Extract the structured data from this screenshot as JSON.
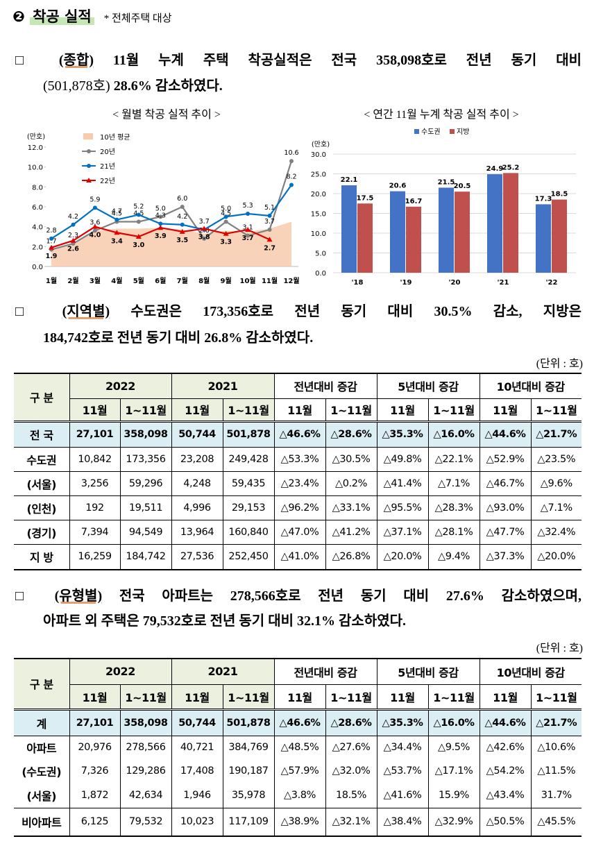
{
  "section": {
    "number": "❷",
    "title": "착공 실적",
    "note": "* 전체주택 대상"
  },
  "paragraphs": [
    {
      "runs": [
        "□",
        "(종합)",
        "11월 누계 주택 착공실적은 전국 358,098호로 전년 동기 대비",
        "(501,878호)",
        "28.6% 감소하였다."
      ]
    },
    {
      "runs": [
        "□",
        "(지역별)",
        "수도권은 173,356호로 전년 동기 대비 30.5% 감소, 지방은",
        "184,742호로 전년 동기 대비 26.8% 감소하였다."
      ]
    },
    {
      "runs": [
        "□",
        "(유형별)",
        "전국 아파트는 278,566호로 전년 동기 대비 27.6% 감소하였으며,",
        "아파트 외 주택은 79,532호로 전년 동기 대비 32.1% 감소하였다."
      ]
    }
  ],
  "chart_data": [
    {
      "type": "line",
      "title": "< 월별 착공 실적 추이 >",
      "y_label": "(만호)",
      "categories": [
        "1월",
        "2월",
        "3월",
        "4월",
        "5월",
        "6월",
        "7월",
        "8월",
        "9월",
        "10월",
        "11월",
        "12월"
      ],
      "ylim": [
        0,
        12
      ],
      "yticks": [
        {
          "value": 0,
          "label": "0.0"
        },
        {
          "value": 2,
          "label": "2.0"
        },
        {
          "value": 4,
          "label": "4.0"
        },
        {
          "value": 6,
          "label": "6.0"
        },
        {
          "value": 8,
          "label": "8.0"
        },
        {
          "value": 10,
          "label": "10.0"
        },
        {
          "value": 12,
          "label": "12.0"
        }
      ],
      "grid": false,
      "series": [
        {
          "name": "10년 평균",
          "style": "area",
          "color": "#f8cbad",
          "values": [
            1.6,
            2.3,
            3.6,
            3.8,
            3.8,
            3.9,
            3.7,
            3.3,
            3.6,
            3.5,
            3.8,
            4.5
          ]
        },
        {
          "name": "20년",
          "style": "line",
          "marker": "circle",
          "color": "#808080",
          "values": [
            1.7,
            2.3,
            3.6,
            4.5,
            4.5,
            5.0,
            6.0,
            2.8,
            4.5,
            3.1,
            3.7,
            10.6
          ],
          "value_labels": [
            "1.7",
            "2.3",
            "3.6",
            "4.5",
            "4.5",
            "5.0",
            "6.0",
            "2.8",
            "4.5",
            "3.1",
            "3.7",
            "10.6"
          ]
        },
        {
          "name": "21년",
          "style": "line",
          "marker": "circle",
          "color": "#0070c0",
          "values": [
            2.8,
            4.2,
            5.9,
            4.7,
            5.2,
            4.3,
            4.2,
            3.7,
            5.0,
            5.3,
            5.1,
            8.2
          ],
          "value_labels": [
            "2.8",
            "4.2",
            "5.9",
            "4.7",
            "5.2",
            "4.3",
            "4.2",
            "3.7",
            "5.0",
            "5.3",
            "5.1",
            "8.2"
          ]
        },
        {
          "name": "22년",
          "style": "line",
          "marker": "triangle",
          "color": "#e00000",
          "values": [
            1.9,
            2.6,
            4.0,
            3.4,
            3.0,
            3.9,
            3.5,
            3.8,
            3.3,
            3.7,
            2.7,
            null
          ],
          "value_labels": [
            "1.9",
            "2.6",
            "4.0",
            "3.4",
            "3.0",
            "3.9",
            "3.5",
            "3.8",
            "3.3",
            "3.7",
            "2.7",
            null
          ]
        }
      ]
    },
    {
      "type": "bar",
      "title": "< 연간 11월 누계 착공 실적 추이 >",
      "y_label": "(만호)",
      "categories": [
        "'18",
        "'19",
        "'20",
        "'21",
        "'22"
      ],
      "ylim": [
        0,
        30
      ],
      "yticks": [
        {
          "value": 0,
          "label": "0.0"
        },
        {
          "value": 5,
          "label": "5.0"
        },
        {
          "value": 10,
          "label": "10.0"
        },
        {
          "value": 15,
          "label": "15.0"
        },
        {
          "value": 20,
          "label": "20.0"
        },
        {
          "value": 25,
          "label": "25.0"
        },
        {
          "value": 30,
          "label": "30.0"
        }
      ],
      "grid": true,
      "series": [
        {
          "name": "수도권",
          "color": "#4472c4",
          "values": [
            22.1,
            20.6,
            21.5,
            24.9,
            17.3
          ]
        },
        {
          "name": "지방",
          "color": "#c0504d",
          "values": [
            17.5,
            16.7,
            20.5,
            25.2,
            18.5
          ]
        }
      ]
    }
  ],
  "tables": [
    {
      "unit": "(단위 : 호)",
      "corner": "구 분",
      "groups": [
        "2022",
        "2021",
        "전년대비 증감",
        "5년대비 증감",
        "10년대비 증감"
      ],
      "subheaders": [
        "11월",
        "1~11월",
        "11월",
        "1~11월",
        "11월",
        "1~11월",
        "11월",
        "1~11월",
        "11월",
        "1~11월"
      ],
      "rows": [
        [
          "전 국",
          "27,101",
          "358,098",
          "50,744",
          "501,878",
          "△46.6%",
          "△28.6%",
          "△35.3%",
          "△16.0%",
          "△44.6%",
          "△21.7%"
        ],
        [
          "수도권",
          "10,842",
          "173,356",
          "23,208",
          "249,428",
          "△53.3%",
          "△30.5%",
          "△49.8%",
          "△22.1%",
          "△52.9%",
          "△23.5%"
        ],
        [
          "(서울)",
          "3,256",
          "59,296",
          "4,248",
          "59,435",
          "△23.4%",
          "△0.2%",
          "△41.4%",
          "△7.1%",
          "△46.7%",
          "△9.6%"
        ],
        [
          "(인천)",
          "192",
          "19,511",
          "4,996",
          "29,153",
          "△96.2%",
          "△33.1%",
          "△95.5%",
          "△28.3%",
          "△93.0%",
          "△7.1%"
        ],
        [
          "(경기)",
          "7,394",
          "94,549",
          "13,964",
          "160,840",
          "△47.0%",
          "△41.2%",
          "△37.1%",
          "△28.1%",
          "△47.7%",
          "△32.4%"
        ],
        [
          "지 방",
          "16,259",
          "184,742",
          "27,536",
          "252,450",
          "△41.0%",
          "△26.8%",
          "△20.0%",
          "△9.4%",
          "△37.3%",
          "△20.0%"
        ]
      ]
    },
    {
      "unit": "(단위 : 호)",
      "corner": "구 분",
      "groups": [
        "2022",
        "2021",
        "전년대비 증감",
        "5년대비 증감",
        "10년대비 증감"
      ],
      "subheaders": [
        "11월",
        "1~11월",
        "11월",
        "1~11월",
        "11월",
        "1~11월",
        "11월",
        "1~11월",
        "11월",
        "1~11월"
      ],
      "rows": [
        [
          "계",
          "27,101",
          "358,098",
          "50,744",
          "501,878",
          "△46.6%",
          "△28.6%",
          "△35.3%",
          "△16.0%",
          "△44.6%",
          "△21.7%"
        ],
        [
          "아파트",
          "20,976",
          "278,566",
          "40,721",
          "384,769",
          "△48.5%",
          "△27.6%",
          "△34.4%",
          "△9.5%",
          "△42.6%",
          "△10.6%"
        ],
        [
          "(수도권)",
          "7,326",
          "129,286",
          "17,408",
          "190,187",
          "△57.9%",
          "△32.0%",
          "△53.7%",
          "△17.1%",
          "△54.2%",
          "△11.5%"
        ],
        [
          "(서울)",
          "1,872",
          "42,634",
          "1,946",
          "35,978",
          "△3.8%",
          "18.5%",
          "△41.6%",
          "15.9%",
          "△43.4%",
          "31.7%"
        ],
        [
          "비아파트",
          "6,125",
          "79,532",
          "10,023",
          "117,109",
          "△38.9%",
          "△32.1%",
          "△38.4%",
          "△32.9%",
          "△50.5%",
          "△45.5%"
        ]
      ]
    }
  ]
}
